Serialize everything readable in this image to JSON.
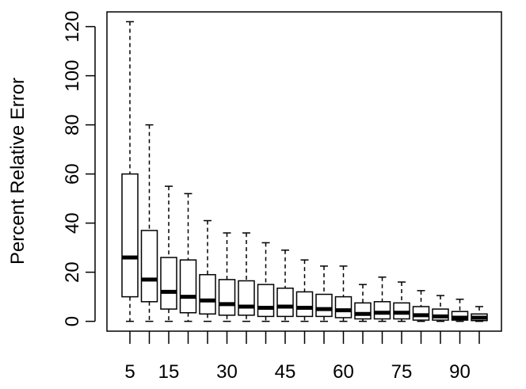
{
  "chart_data": {
    "type": "boxplot",
    "title": "",
    "xlabel": "",
    "ylabel": "Percent Relative Error",
    "ylim": [
      -4,
      126
    ],
    "y_ticks": [
      0,
      20,
      40,
      60,
      80,
      100,
      120
    ],
    "y_tick_labels": [
      "0",
      "20",
      "40",
      "60",
      "80",
      "100",
      "120"
    ],
    "x_categories": [
      5,
      10,
      15,
      20,
      25,
      30,
      35,
      40,
      45,
      50,
      55,
      60,
      65,
      70,
      75,
      80,
      85,
      90,
      95
    ],
    "x_tick_labels": [
      "5",
      "",
      "15",
      "",
      "",
      "30",
      "",
      "",
      "45",
      "",
      "",
      "60",
      "",
      "",
      "75",
      "",
      "",
      "90",
      ""
    ],
    "grid": false,
    "legend": "none",
    "boxes": [
      {
        "x": 5,
        "min": 0,
        "q1": 10,
        "median": 26,
        "q3": 60,
        "max": 122
      },
      {
        "x": 10,
        "min": 0,
        "q1": 8,
        "median": 17,
        "q3": 37,
        "max": 80
      },
      {
        "x": 15,
        "min": 0,
        "q1": 5,
        "median": 12,
        "q3": 26,
        "max": 55
      },
      {
        "x": 20,
        "min": 0,
        "q1": 3.5,
        "median": 10,
        "q3": 25,
        "max": 52
      },
      {
        "x": 25,
        "min": 0,
        "q1": 3,
        "median": 8.5,
        "q3": 19,
        "max": 41
      },
      {
        "x": 30,
        "min": 0,
        "q1": 2.5,
        "median": 7,
        "q3": 17,
        "max": 36
      },
      {
        "x": 35,
        "min": 0,
        "q1": 2.5,
        "median": 6,
        "q3": 16.5,
        "max": 36
      },
      {
        "x": 40,
        "min": 0,
        "q1": 2,
        "median": 5.5,
        "q3": 15,
        "max": 32
      },
      {
        "x": 45,
        "min": 0,
        "q1": 2,
        "median": 6,
        "q3": 13.5,
        "max": 29
      },
      {
        "x": 50,
        "min": 0,
        "q1": 2,
        "median": 5.5,
        "q3": 12,
        "max": 25
      },
      {
        "x": 55,
        "min": 0,
        "q1": 2,
        "median": 5,
        "q3": 11,
        "max": 22.5
      },
      {
        "x": 60,
        "min": 0,
        "q1": 1.5,
        "median": 4.5,
        "q3": 10,
        "max": 22.5
      },
      {
        "x": 65,
        "min": 0,
        "q1": 1,
        "median": 3,
        "q3": 7.5,
        "max": 15
      },
      {
        "x": 70,
        "min": 0,
        "q1": 1,
        "median": 3.5,
        "q3": 8,
        "max": 18
      },
      {
        "x": 75,
        "min": 0,
        "q1": 1,
        "median": 3.5,
        "q3": 7.5,
        "max": 16
      },
      {
        "x": 80,
        "min": 0,
        "q1": 0.5,
        "median": 2.5,
        "q3": 6,
        "max": 12.5
      },
      {
        "x": 85,
        "min": 0,
        "q1": 0.5,
        "median": 2,
        "q3": 5,
        "max": 10.5
      },
      {
        "x": 90,
        "min": 0,
        "q1": 0.5,
        "median": 1.5,
        "q3": 4,
        "max": 9
      },
      {
        "x": 95,
        "min": 0,
        "q1": 0.3,
        "median": 1.5,
        "q3": 3,
        "max": 6
      }
    ]
  }
}
